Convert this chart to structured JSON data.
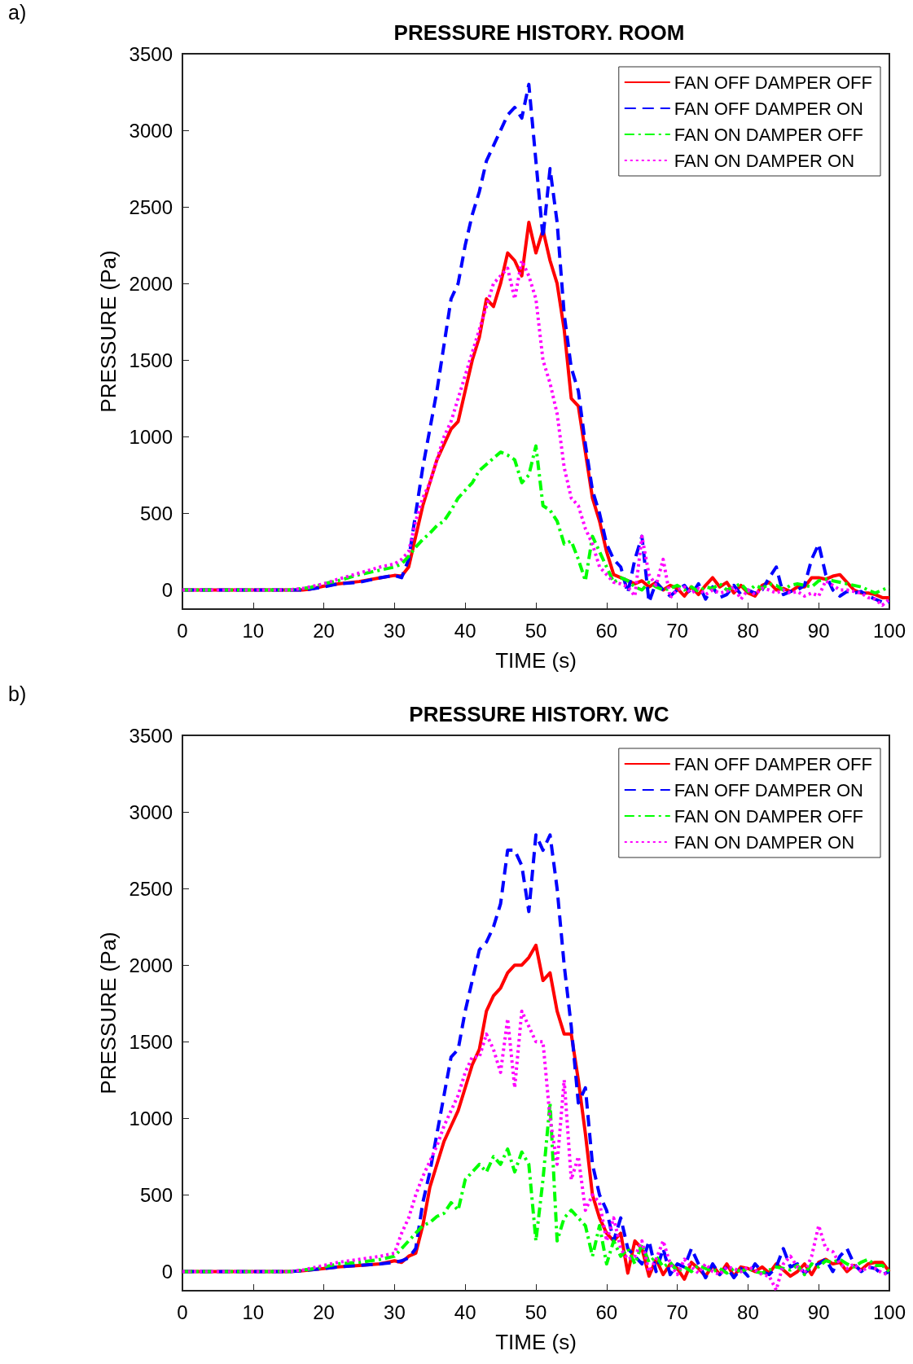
{
  "chart_data": [
    {
      "type": "line",
      "title": "PRESSURE HISTORY. ROOM",
      "xlabel": "TIME (s)",
      "ylabel": "PRESSURE (Pa)",
      "annotations": [
        "a)"
      ],
      "x": [
        0,
        10,
        15,
        17,
        18,
        20,
        22,
        25,
        28,
        30,
        31,
        32,
        33,
        34,
        35,
        36,
        37,
        38,
        39,
        40,
        41,
        42,
        43,
        44,
        45,
        46,
        47,
        48,
        49,
        50,
        51,
        52,
        53,
        54,
        55,
        56,
        57,
        58,
        59,
        60,
        61,
        62,
        63,
        64,
        65,
        66,
        67,
        68,
        69,
        70,
        71,
        72,
        73,
        74,
        75,
        76,
        77,
        78,
        79,
        80,
        81,
        82,
        83,
        84,
        85,
        86,
        87,
        88,
        89,
        90,
        91,
        92,
        93,
        94,
        95,
        96,
        97,
        98,
        99,
        100
      ],
      "series": [
        {
          "name": "FAN OFF DAMPER OFF",
          "color": "#ff0000",
          "line_style": "solid",
          "values": [
            0,
            0,
            0,
            0,
            5,
            25,
            40,
            55,
            80,
            95,
            90,
            150,
            350,
            550,
            700,
            850,
            950,
            1050,
            1100,
            1300,
            1500,
            1650,
            1900,
            1850,
            2000,
            2200,
            2150,
            2050,
            2400,
            2200,
            2350,
            2150,
            2000,
            1700,
            1250,
            1200,
            900,
            600,
            450,
            250,
            100,
            80,
            60,
            40,
            60,
            20,
            50,
            0,
            30,
            10,
            -40,
            20,
            -30,
            30,
            80,
            20,
            50,
            -20,
            30,
            -20,
            -40,
            30,
            50,
            0,
            10,
            -10,
            20,
            20,
            80,
            80,
            70,
            90,
            100,
            50,
            0,
            -20,
            -20,
            -30,
            -50,
            -50
          ]
        },
        {
          "name": "FAN OFF DAMPER ON",
          "color": "#0000ff",
          "line_style": "dashed",
          "values": [
            0,
            0,
            0,
            0,
            5,
            20,
            40,
            50,
            80,
            95,
            80,
            200,
            500,
            800,
            1050,
            1300,
            1600,
            1900,
            2000,
            2250,
            2450,
            2600,
            2800,
            2900,
            3000,
            3100,
            3150,
            3080,
            3300,
            2800,
            2300,
            2750,
            2400,
            1800,
            1450,
            1300,
            950,
            650,
            500,
            300,
            200,
            150,
            -20,
            200,
            350,
            -80,
            50,
            0,
            -40,
            0,
            30,
            -30,
            40,
            -60,
            20,
            -50,
            -30,
            30,
            -30,
            0,
            -20,
            0,
            80,
            150,
            -30,
            -10,
            0,
            30,
            200,
            300,
            100,
            0,
            -40,
            -10,
            -20,
            -10,
            -40,
            -60,
            -80,
            -80
          ]
        },
        {
          "name": "FAN ON DAMPER OFF",
          "color": "#00ff00",
          "line_style": "dashdot",
          "values": [
            0,
            0,
            0,
            10,
            15,
            40,
            60,
            100,
            130,
            150,
            170,
            220,
            280,
            330,
            370,
            420,
            450,
            520,
            600,
            650,
            700,
            780,
            820,
            860,
            900,
            880,
            850,
            700,
            750,
            940,
            550,
            520,
            450,
            300,
            320,
            200,
            60,
            350,
            250,
            150,
            50,
            80,
            60,
            20,
            0,
            50,
            20,
            0,
            10,
            30,
            0,
            20,
            -10,
            20,
            10,
            40,
            0,
            20,
            40,
            -10,
            30,
            10,
            40,
            30,
            0,
            30,
            40,
            30,
            20,
            60,
            70,
            60,
            50,
            40,
            30,
            20,
            0,
            -20,
            0,
            20
          ]
        },
        {
          "name": "FAN ON DAMPER ON",
          "color": "#ff00ff",
          "line_style": "dotted",
          "values": [
            0,
            0,
            0,
            10,
            20,
            40,
            70,
            110,
            150,
            170,
            200,
            250,
            450,
            600,
            700,
            850,
            1000,
            1100,
            1250,
            1400,
            1550,
            1700,
            1850,
            2000,
            2050,
            2100,
            1900,
            2150,
            2050,
            1900,
            1500,
            1350,
            1150,
            800,
            600,
            550,
            400,
            300,
            150,
            100,
            50,
            40,
            20,
            -40,
            350,
            100,
            30,
            200,
            -50,
            0,
            20,
            -20,
            10,
            -30,
            0,
            -20,
            -10,
            20,
            -60,
            0,
            -30,
            10,
            0,
            -20,
            0,
            -20,
            -10,
            -40,
            -20,
            -40,
            60,
            30,
            0,
            0,
            -10,
            -20,
            -50,
            -60,
            -100,
            -60
          ]
        }
      ],
      "xlim": [
        0,
        100
      ],
      "xticks": [
        0,
        10,
        20,
        30,
        40,
        50,
        60,
        70,
        80,
        90,
        100
      ],
      "ylim": [
        -125,
        3500
      ],
      "yticks": [
        0,
        500,
        1000,
        1500,
        2000,
        2500,
        3000,
        3500
      ],
      "legend": "top right",
      "grid": false,
      "marker": "none"
    },
    {
      "type": "line",
      "title": "PRESSURE HISTORY. WC",
      "xlabel": "TIME (s)",
      "ylabel": "PRESSURE (Pa)",
      "annotations": [
        "b)"
      ],
      "x": [
        0,
        10,
        15,
        17,
        18,
        20,
        22,
        25,
        28,
        30,
        31,
        32,
        33,
        34,
        35,
        36,
        37,
        38,
        39,
        40,
        41,
        42,
        43,
        44,
        45,
        46,
        47,
        48,
        49,
        50,
        51,
        52,
        53,
        54,
        55,
        56,
        57,
        58,
        59,
        60,
        61,
        62,
        63,
        64,
        65,
        66,
        67,
        68,
        69,
        70,
        71,
        72,
        73,
        74,
        75,
        76,
        77,
        78,
        79,
        80,
        81,
        82,
        83,
        84,
        85,
        86,
        87,
        88,
        89,
        90,
        91,
        92,
        93,
        94,
        95,
        96,
        97,
        98,
        99,
        100
      ],
      "series": [
        {
          "name": "FAN OFF DAMPER OFF",
          "color": "#ff0000",
          "line_style": "solid",
          "values": [
            0,
            0,
            0,
            5,
            10,
            20,
            30,
            40,
            50,
            70,
            60,
            100,
            120,
            300,
            550,
            700,
            850,
            950,
            1050,
            1200,
            1350,
            1450,
            1700,
            1800,
            1850,
            1950,
            2000,
            2000,
            2050,
            2130,
            1900,
            1950,
            1700,
            1550,
            1550,
            1250,
            900,
            500,
            350,
            250,
            200,
            250,
            -10,
            200,
            150,
            -30,
            80,
            -20,
            50,
            20,
            -50,
            60,
            20,
            -30,
            40,
            -20,
            50,
            -30,
            30,
            20,
            0,
            30,
            -10,
            50,
            10,
            -30,
            0,
            50,
            -20,
            60,
            80,
            50,
            60,
            0,
            40,
            10,
            50,
            60,
            60,
            0
          ]
        },
        {
          "name": "FAN OFF DAMPER ON",
          "color": "#0000ff",
          "line_style": "dashed",
          "values": [
            0,
            0,
            0,
            5,
            10,
            20,
            30,
            40,
            50,
            60,
            70,
            90,
            150,
            450,
            650,
            900,
            1150,
            1400,
            1450,
            1700,
            1900,
            2100,
            2150,
            2250,
            2400,
            2750,
            2750,
            2650,
            2350,
            2850,
            2750,
            2850,
            2500,
            2000,
            1600,
            1100,
            1200,
            700,
            500,
            400,
            200,
            350,
            150,
            100,
            50,
            200,
            0,
            150,
            -20,
            50,
            30,
            150,
            50,
            -40,
            50,
            -20,
            30,
            -40,
            20,
            -30,
            50,
            0,
            -20,
            30,
            150,
            30,
            50,
            -10,
            30,
            50,
            80,
            0,
            100,
            150,
            50,
            0,
            30,
            20,
            -20,
            0
          ]
        },
        {
          "name": "FAN ON DAMPER OFF",
          "color": "#00ff00",
          "line_style": "dashdot",
          "values": [
            0,
            0,
            0,
            10,
            15,
            30,
            50,
            60,
            80,
            100,
            150,
            200,
            250,
            300,
            320,
            360,
            380,
            450,
            400,
            600,
            650,
            700,
            650,
            750,
            700,
            800,
            650,
            780,
            700,
            200,
            600,
            1100,
            200,
            350,
            400,
            350,
            300,
            100,
            300,
            50,
            200,
            100,
            150,
            50,
            180,
            60,
            100,
            30,
            60,
            0,
            30,
            0,
            40,
            20,
            0,
            20,
            -10,
            20,
            0,
            20,
            0,
            -10,
            10,
            30,
            20,
            10,
            40,
            -20,
            50,
            30,
            70,
            60,
            80,
            50,
            30,
            60,
            80,
            40,
            40,
            0
          ]
        },
        {
          "name": "FAN ON DAMPER ON",
          "color": "#ff00ff",
          "line_style": "dotted",
          "values": [
            0,
            0,
            0,
            10,
            20,
            40,
            60,
            80,
            100,
            120,
            250,
            350,
            500,
            620,
            720,
            820,
            950,
            1050,
            1150,
            1300,
            1400,
            1400,
            1550,
            1450,
            1300,
            1650,
            1200,
            1700,
            1600,
            1500,
            1500,
            1000,
            700,
            1250,
            600,
            750,
            400,
            500,
            450,
            200,
            350,
            150,
            80,
            100,
            200,
            0,
            80,
            200,
            50,
            -20,
            80,
            30,
            -10,
            50,
            0,
            -20,
            30,
            20,
            0,
            30,
            10,
            -20,
            -30,
            -120,
            50,
            100,
            30,
            -10,
            100,
            300,
            150,
            130,
            50,
            20,
            50,
            0,
            30,
            20,
            -10,
            -20
          ]
        }
      ],
      "xlim": [
        0,
        100
      ],
      "xticks": [
        0,
        10,
        20,
        30,
        40,
        50,
        60,
        70,
        80,
        90,
        100
      ],
      "ylim": [
        -125,
        3500
      ],
      "yticks": [
        0,
        500,
        1000,
        1500,
        2000,
        2500,
        3000,
        3500
      ],
      "legend": "top right",
      "grid": false,
      "marker": "none"
    }
  ]
}
